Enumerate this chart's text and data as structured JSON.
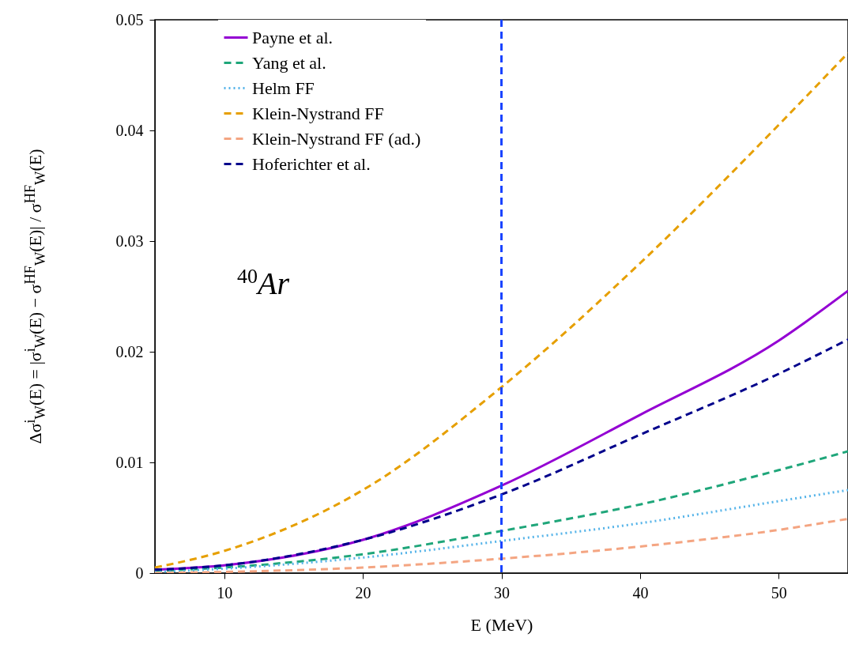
{
  "chart_data": {
    "type": "line",
    "xlabel": "E (MeV)",
    "ylabel": "Δσ$^{i}$$_{W}$(E)  =  |σ$^{i}$$_{W}$(E) − σ$^{HF}$$_{W}$(E)| / σ$^{HF}$$_{W}$(E)",
    "annotations": [
      "$^{40}$Ar"
    ],
    "x": [
      5,
      10,
      20,
      30,
      40,
      50,
      55
    ],
    "xlim": [
      5,
      55
    ],
    "xticks": [
      10,
      20,
      30,
      40,
      50
    ],
    "ylim": [
      0,
      0.05
    ],
    "yticks": [
      0,
      0.01,
      0.02,
      0.03,
      0.04,
      0.05
    ],
    "legend": "top",
    "grid": false,
    "series": [
      {
        "name": "Payne et al.",
        "color": "#9400d3",
        "line_style": "solid",
        "values": [
          0.0003,
          0.0007,
          0.003,
          0.0079,
          0.0143,
          0.021,
          0.0255
        ]
      },
      {
        "name": "Yang et al.",
        "color": "#1fa67a",
        "line_style": "dashed",
        "values": [
          0.0002,
          0.0005,
          0.0017,
          0.0038,
          0.0062,
          0.0093,
          0.011
        ]
      },
      {
        "name": "Helm FF",
        "color": "#56b4e9",
        "line_style": "dotted",
        "values": [
          0.0001,
          0.0004,
          0.0014,
          0.0029,
          0.0045,
          0.0065,
          0.0075
        ]
      },
      {
        "name": "Klein-Nystrand FF",
        "color": "#e69f00",
        "line_style": "dashed",
        "values": [
          0.0005,
          0.002,
          0.0075,
          0.0168,
          0.028,
          0.0405,
          0.047
        ]
      },
      {
        "name": "Klein-Nystrand FF (ad.)",
        "color": "#f4a582",
        "line_style": "dashed",
        "values": [
          0,
          0.0001,
          0.0005,
          0.0013,
          0.0024,
          0.0039,
          0.0049
        ]
      },
      {
        "name": "Hoferichter et al.",
        "color": "#00008b",
        "line_style": "dashed",
        "values": [
          0.0003,
          0.0007,
          0.003,
          0.0071,
          0.0125,
          0.018,
          0.0211
        ]
      }
    ],
    "ref_lines": [
      {
        "axis": "x",
        "value": 30,
        "color": "#1a44ff",
        "line_style": "dashed"
      }
    ]
  }
}
